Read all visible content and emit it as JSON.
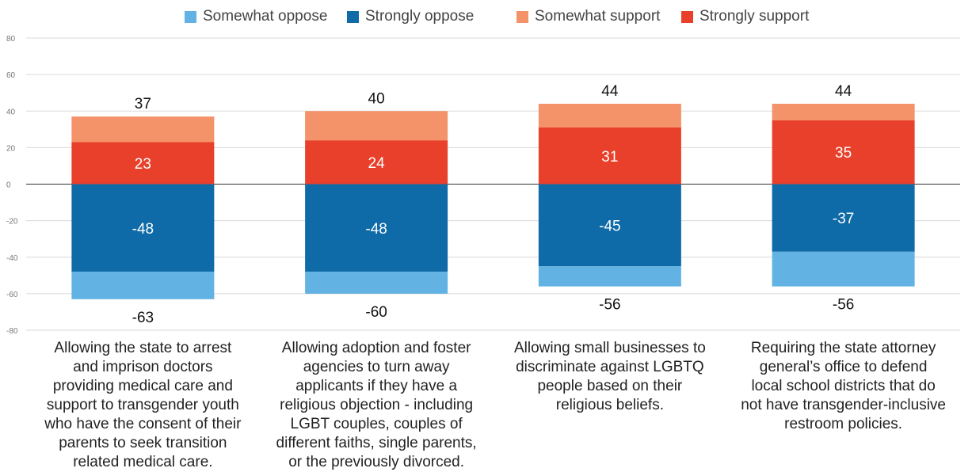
{
  "chart_data": {
    "type": "bar",
    "stacked": true,
    "title": "",
    "xlabel": "",
    "ylabel": "",
    "ylim": [
      -80,
      80
    ],
    "yticks": [
      80,
      60,
      40,
      20,
      0,
      -20,
      -40,
      -60,
      -80
    ],
    "grid": true,
    "legend_position": "top-center",
    "categories": [
      "Allowing the state to arrest and imprison doctors providing medical care and support to transgender youth who have the consent of their parents to seek transition related medical care.",
      "Allowing adoption and foster agencies to turn away applicants if they have a religious objection - including LGBT couples, couples of different faiths, single parents, or the previously divorced.",
      "Allowing small businesses to discriminate against LGBTQ people based on their religious beliefs.",
      "Requiring the state attorney general’s office to defend local school districts that do not have transgender-inclusive restroom policies."
    ],
    "category_lines": [
      [
        "Allowing the state to arrest",
        "and imprison doctors",
        "providing medical care and",
        "support to transgender youth",
        "who have the consent of their",
        "parents to seek transition",
        "related medical care."
      ],
      [
        "Allowing adoption and foster",
        "agencies to turn away",
        "applicants if they have a",
        "religious objection - including",
        "LGBT couples, couples of",
        "different faiths, single parents,",
        "or the previously divorced."
      ],
      [
        "Allowing small businesses to",
        "discriminate against LGBTQ",
        "people based on their",
        "religious beliefs."
      ],
      [
        "Requiring the state attorney",
        "general’s office to defend",
        "local school districts that do",
        "not have transgender-inclusive",
        "restroom policies."
      ]
    ],
    "series": [
      {
        "name": "Somewhat oppose",
        "color": "#62b3e3",
        "values": [
          -15,
          -12,
          -11,
          -19
        ]
      },
      {
        "name": "Strongly oppose",
        "color": "#0f6aa8",
        "values": [
          -48,
          -48,
          -45,
          -37
        ]
      },
      {
        "name": "Somewhat support",
        "color": "#f4926a",
        "values": [
          14,
          16,
          13,
          9
        ]
      },
      {
        "name": "Strongly support",
        "color": "#e8402a",
        "values": [
          23,
          24,
          31,
          35
        ]
      }
    ],
    "inner_labels": {
      "strongly_support": [
        "23",
        "24",
        "31",
        "35"
      ],
      "strongly_oppose": [
        "-48",
        "-48",
        "-45",
        "-37"
      ]
    },
    "total_labels": {
      "support": [
        "37",
        "40",
        "44",
        "44"
      ],
      "oppose": [
        "-63",
        "-60",
        "-56",
        "-56"
      ]
    },
    "tick_labels": [
      "80",
      "60",
      "40",
      "20",
      "0",
      "-20",
      "-40",
      "-60",
      "-80"
    ]
  }
}
